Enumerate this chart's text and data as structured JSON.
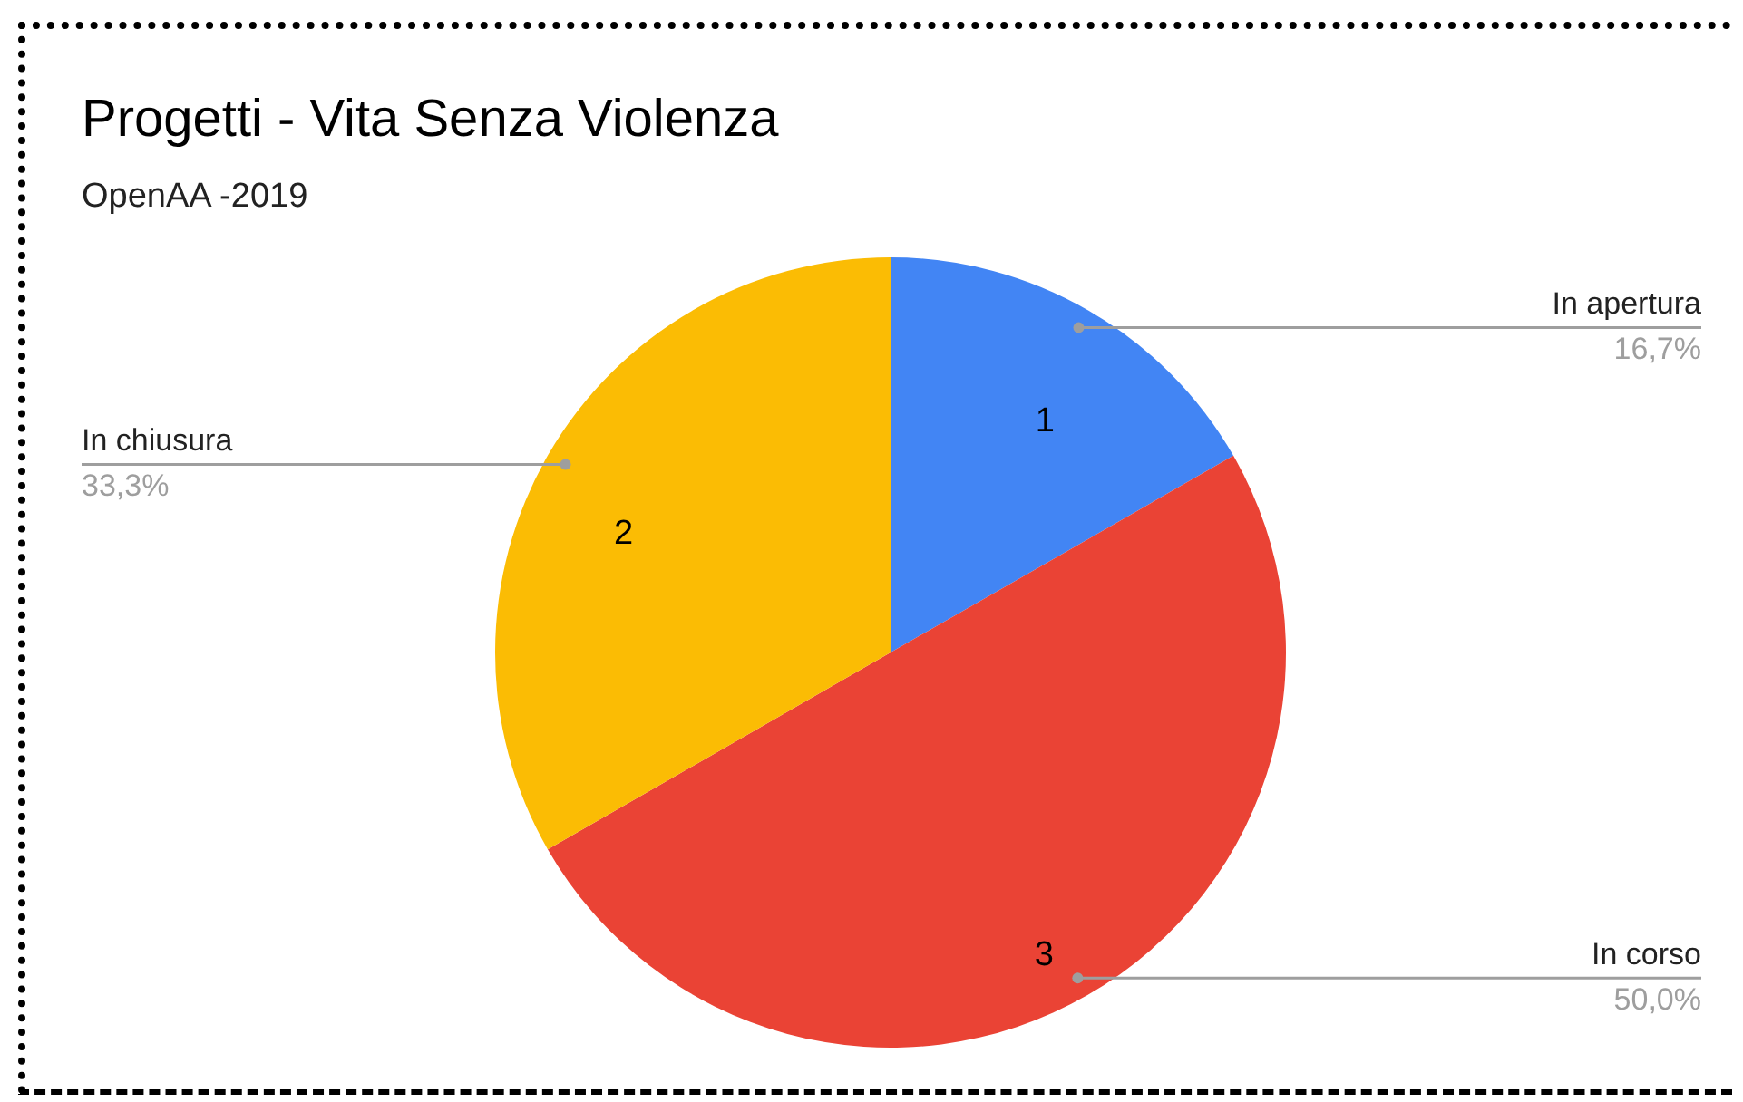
{
  "chart_data": {
    "type": "pie",
    "title": "Progetti - Vita Senza Violenza",
    "subtitle": "OpenAA -2019",
    "categories": [
      "In apertura",
      "In corso",
      "In chiusura"
    ],
    "values": [
      16.7,
      50.0,
      33.3
    ],
    "colors": [
      "#4285f4",
      "#ea4335",
      "#fbbc04"
    ],
    "value_labels": [
      "16,7%",
      "50,0%",
      "33,3%"
    ],
    "annotations": [
      {
        "text": "1",
        "x": "In apertura"
      },
      {
        "text": "3",
        "x": "In corso"
      },
      {
        "text": "2",
        "x": "In chiusura"
      }
    ],
    "legend": false
  }
}
